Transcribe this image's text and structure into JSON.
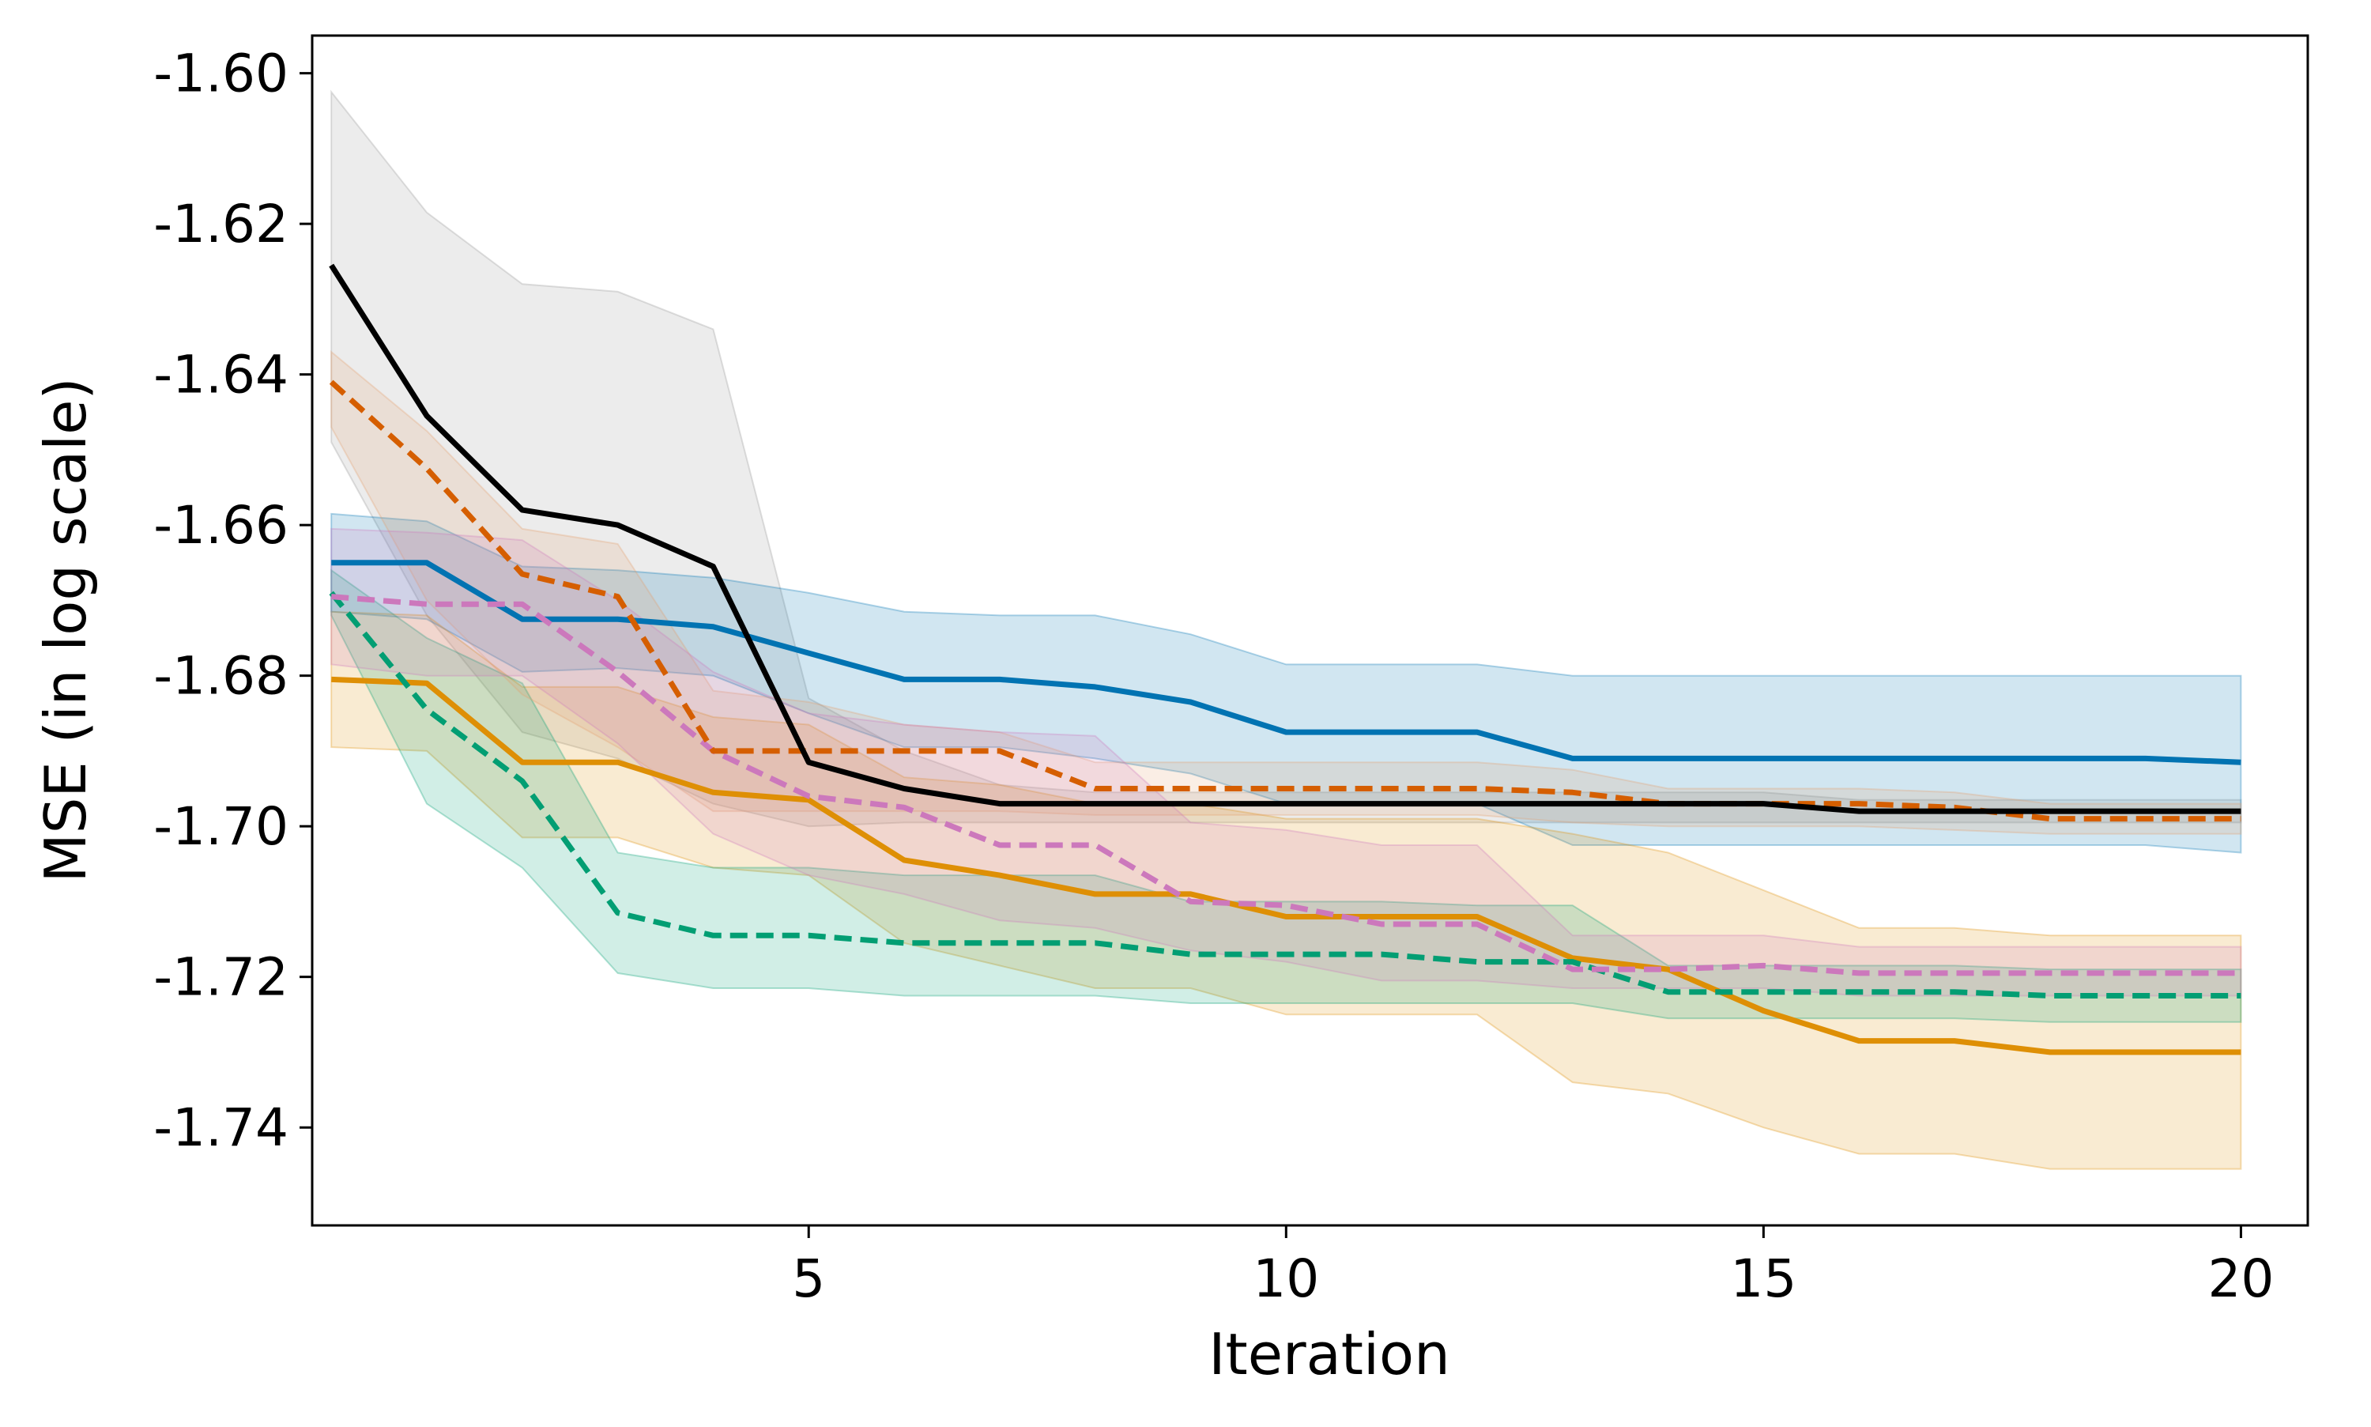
{
  "chart_data": {
    "type": "line",
    "title": "",
    "xlabel": "Iteration",
    "ylabel": "MSE (in log scale)",
    "xlim": [
      -0.2,
      20.7
    ],
    "ylim": [
      -1.753,
      -1.595
    ],
    "xticks": [
      5,
      10,
      15,
      20
    ],
    "yticks": [
      -1.6,
      -1.62,
      -1.64,
      -1.66,
      -1.68,
      -1.7,
      -1.72,
      -1.74
    ],
    "ytick_labels": [
      "-1.60",
      "-1.62",
      "-1.64",
      "-1.66",
      "-1.68",
      "-1.70",
      "-1.72",
      "-1.74"
    ],
    "grid": false,
    "legend": "none",
    "x": [
      0,
      1,
      2,
      3,
      4,
      5,
      6,
      7,
      8,
      9,
      10,
      11,
      12,
      13,
      14,
      15,
      16,
      17,
      18,
      19,
      20
    ],
    "series": [
      {
        "color": "#949494",
        "line_color": "#000000",
        "dash": "solid",
        "values": [
          -1.6255,
          -1.6455,
          -1.658,
          -1.66,
          -1.6655,
          -1.6915,
          -1.695,
          -1.697,
          -1.697,
          -1.697,
          -1.697,
          -1.697,
          -1.697,
          -1.697,
          -1.697,
          -1.697,
          -1.698,
          -1.698,
          -1.698,
          -1.698,
          -1.698
        ],
        "upper": [
          -1.6025,
          -1.6185,
          -1.628,
          -1.629,
          -1.634,
          -1.683,
          -1.69,
          -1.6945,
          -1.6955,
          -1.6955,
          -1.6955,
          -1.6955,
          -1.6955,
          -1.6955,
          -1.6955,
          -1.6955,
          -1.6965,
          -1.6965,
          -1.6965,
          -1.6965,
          -1.6965
        ],
        "lower": [
          -1.649,
          -1.672,
          -1.6875,
          -1.691,
          -1.697,
          -1.7,
          -1.6995,
          -1.6995,
          -1.6995,
          -1.6995,
          -1.6995,
          -1.6995,
          -1.6995,
          -1.6995,
          -1.6995,
          -1.6995,
          -1.6995,
          -1.6995,
          -1.6995,
          -1.6995,
          -1.6995
        ]
      },
      {
        "color": "#0173b2",
        "dash": "solid",
        "values": [
          -1.665,
          -1.665,
          -1.6725,
          -1.6725,
          -1.6735,
          -1.677,
          -1.6805,
          -1.6805,
          -1.6815,
          -1.6835,
          -1.6875,
          -1.6875,
          -1.6875,
          -1.691,
          -1.691,
          -1.691,
          -1.691,
          -1.691,
          -1.691,
          -1.691,
          -1.6915
        ],
        "upper": [
          -1.6585,
          -1.6595,
          -1.6655,
          -1.666,
          -1.667,
          -1.669,
          -1.6715,
          -1.672,
          -1.672,
          -1.6745,
          -1.6785,
          -1.6785,
          -1.6785,
          -1.68,
          -1.68,
          -1.68,
          -1.68,
          -1.68,
          -1.68,
          -1.68,
          -1.68
        ],
        "lower": [
          -1.6715,
          -1.6725,
          -1.6795,
          -1.679,
          -1.68,
          -1.685,
          -1.6895,
          -1.6895,
          -1.691,
          -1.693,
          -1.697,
          -1.697,
          -1.697,
          -1.7025,
          -1.7025,
          -1.7025,
          -1.7025,
          -1.7025,
          -1.7025,
          -1.7025,
          -1.7035
        ]
      },
      {
        "color": "#de8f05",
        "dash": "solid",
        "values": [
          -1.6805,
          -1.681,
          -1.6915,
          -1.6915,
          -1.6955,
          -1.6965,
          -1.7045,
          -1.7065,
          -1.709,
          -1.709,
          -1.712,
          -1.712,
          -1.712,
          -1.7175,
          -1.719,
          -1.7245,
          -1.7285,
          -1.7285,
          -1.73,
          -1.73,
          -1.73
        ],
        "upper": [
          -1.6715,
          -1.672,
          -1.6815,
          -1.6815,
          -1.6855,
          -1.6865,
          -1.6935,
          -1.6945,
          -1.697,
          -1.697,
          -1.699,
          -1.699,
          -1.699,
          -1.701,
          -1.7035,
          -1.7085,
          -1.7135,
          -1.7135,
          -1.7145,
          -1.7145,
          -1.7145
        ],
        "lower": [
          -1.6895,
          -1.69,
          -1.7015,
          -1.7015,
          -1.7055,
          -1.7065,
          -1.7155,
          -1.7185,
          -1.7215,
          -1.7215,
          -1.725,
          -1.725,
          -1.725,
          -1.734,
          -1.7355,
          -1.74,
          -1.7435,
          -1.7435,
          -1.7455,
          -1.7455,
          -1.7455
        ]
      },
      {
        "color": "#029e73",
        "dash": "dashed",
        "values": [
          -1.669,
          -1.6845,
          -1.694,
          -1.7115,
          -1.7145,
          -1.7145,
          -1.7155,
          -1.7155,
          -1.7155,
          -1.717,
          -1.717,
          -1.717,
          -1.718,
          -1.718,
          -1.722,
          -1.722,
          -1.722,
          -1.722,
          -1.7225,
          -1.7225,
          -1.7225
        ],
        "upper": [
          -1.666,
          -1.675,
          -1.681,
          -1.7035,
          -1.7055,
          -1.7055,
          -1.7065,
          -1.7065,
          -1.7065,
          -1.71,
          -1.71,
          -1.71,
          -1.7105,
          -1.7105,
          -1.7185,
          -1.7185,
          -1.7185,
          -1.7185,
          -1.719,
          -1.719,
          -1.719
        ],
        "lower": [
          -1.672,
          -1.697,
          -1.7055,
          -1.7195,
          -1.7215,
          -1.7215,
          -1.7225,
          -1.7225,
          -1.7225,
          -1.7235,
          -1.7235,
          -1.7235,
          -1.7235,
          -1.7235,
          -1.7255,
          -1.7255,
          -1.7255,
          -1.7255,
          -1.726,
          -1.726,
          -1.726
        ]
      },
      {
        "color": "#d55e00",
        "line_color": "#d55e00",
        "band_color": "#e69f6d",
        "dash": "dashed",
        "values": [
          -1.641,
          -1.6525,
          -1.6665,
          -1.6695,
          -1.69,
          -1.69,
          -1.69,
          -1.69,
          -1.695,
          -1.695,
          -1.695,
          -1.695,
          -1.695,
          -1.6955,
          -1.697,
          -1.697,
          -1.697,
          -1.6975,
          -1.699,
          -1.699,
          -1.699
        ],
        "upper": [
          -1.637,
          -1.6475,
          -1.6605,
          -1.6625,
          -1.682,
          -1.6835,
          -1.6865,
          -1.6875,
          -1.6915,
          -1.6915,
          -1.6915,
          -1.6915,
          -1.6915,
          -1.6925,
          -1.695,
          -1.695,
          -1.695,
          -1.6955,
          -1.697,
          -1.697,
          -1.697
        ],
        "lower": [
          -1.647,
          -1.67,
          -1.6825,
          -1.6895,
          -1.698,
          -1.698,
          -1.698,
          -1.698,
          -1.6985,
          -1.6985,
          -1.6985,
          -1.6985,
          -1.6985,
          -1.6995,
          -1.7,
          -1.7,
          -1.7,
          -1.7005,
          -1.701,
          -1.701,
          -1.701
        ]
      },
      {
        "color": "#cc78bc",
        "dash": "dashed",
        "values": [
          -1.6695,
          -1.6705,
          -1.6705,
          -1.6795,
          -1.69,
          -1.696,
          -1.6975,
          -1.7025,
          -1.7025,
          -1.71,
          -1.7105,
          -1.713,
          -1.713,
          -1.719,
          -1.719,
          -1.7185,
          -1.7195,
          -1.7195,
          -1.7195,
          -1.7195,
          -1.7195
        ],
        "upper": [
          -1.6605,
          -1.661,
          -1.662,
          -1.67,
          -1.6795,
          -1.685,
          -1.6865,
          -1.6875,
          -1.688,
          -1.6995,
          -1.7005,
          -1.7025,
          -1.7025,
          -1.7145,
          -1.7145,
          -1.7145,
          -1.716,
          -1.716,
          -1.716,
          -1.716,
          -1.716
        ],
        "lower": [
          -1.6785,
          -1.68,
          -1.68,
          -1.689,
          -1.701,
          -1.7065,
          -1.709,
          -1.7125,
          -1.7135,
          -1.7165,
          -1.718,
          -1.7205,
          -1.7205,
          -1.7215,
          -1.7215,
          -1.7215,
          -1.7225,
          -1.7225,
          -1.7225,
          -1.7225,
          -1.7225
        ]
      }
    ]
  }
}
